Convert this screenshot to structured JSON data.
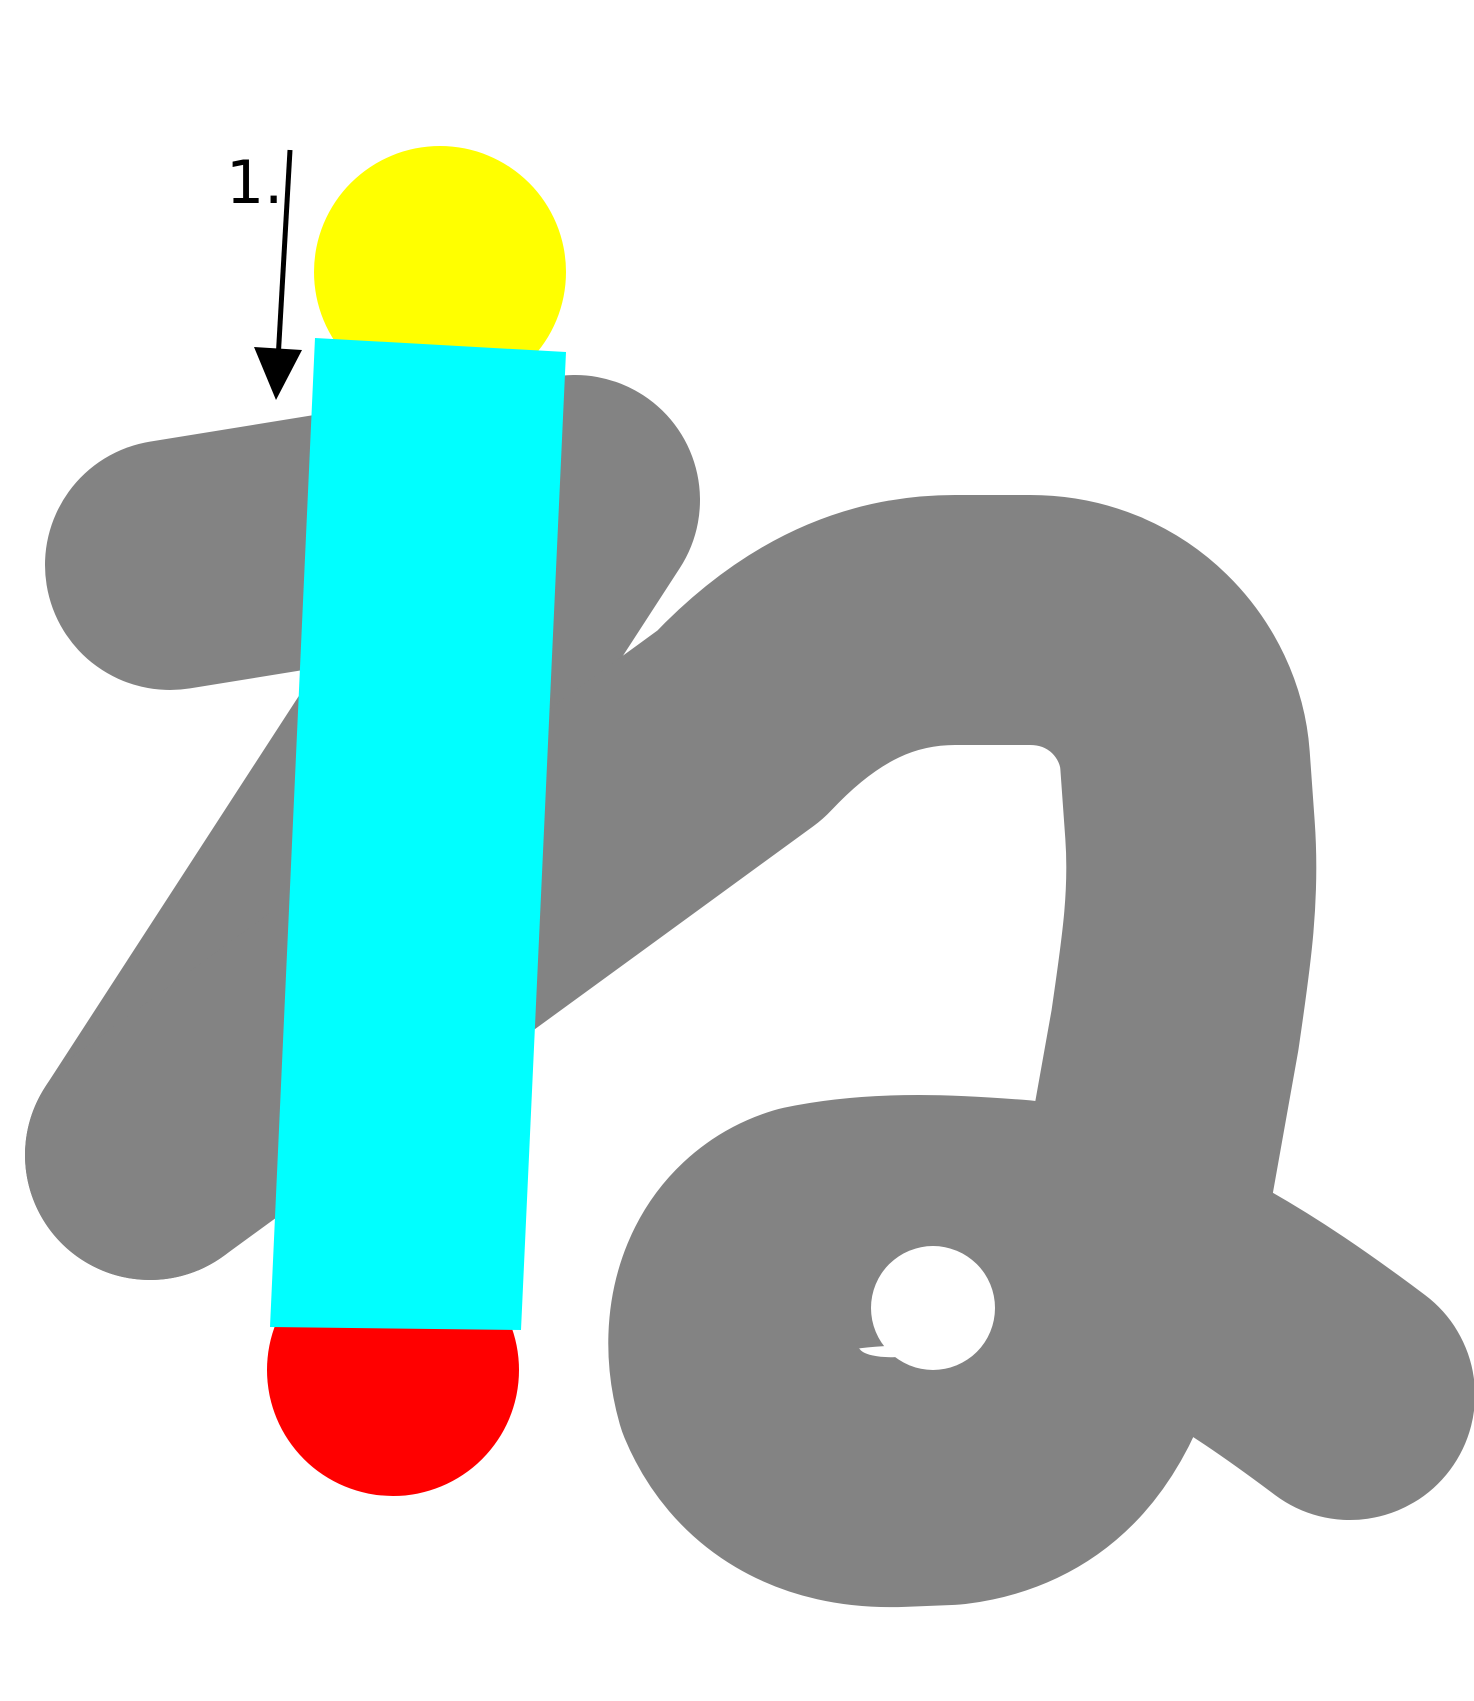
{
  "character": "ね",
  "diagram_type": "stroke-order",
  "current_step": 1,
  "step_label": "1.",
  "colors": {
    "background": "#ffffff",
    "remaining_strokes": "#838383",
    "active_stroke_body": "#00ffff",
    "active_stroke_start": "#ffff00",
    "active_stroke_end": "#ff0000",
    "direction_arrow": "#000000",
    "label_text": "#000000"
  },
  "icons": {
    "direction_arrow": "down-arrow-icon"
  }
}
